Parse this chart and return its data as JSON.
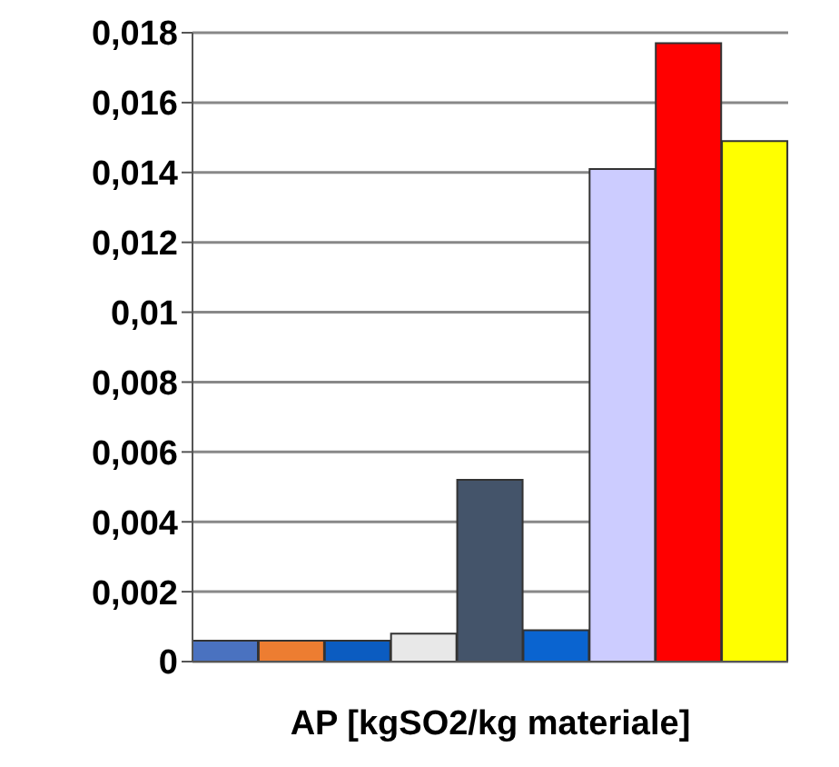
{
  "chart_data": {
    "type": "bar",
    "xlabel": "AP [kgSO2/kg materiale]",
    "categories": [
      null,
      null,
      null,
      null,
      null,
      null,
      null,
      null,
      null
    ],
    "values": [
      0.0006,
      0.0006,
      0.0006,
      0.0008,
      0.0052,
      0.0009,
      0.0141,
      0.0177,
      0.0149
    ],
    "colors": [
      "#4a72c0",
      "#ed7d31",
      "#0b5cc1",
      "#e8e8e8",
      "#44546a",
      "#0a64d0",
      "#ccccff",
      "#ff0000",
      "#ffff00"
    ],
    "ylim": [
      0,
      0.018
    ],
    "yticks": [
      {
        "value": 0,
        "label": "0"
      },
      {
        "value": 0.002,
        "label": "0,002"
      },
      {
        "value": 0.004,
        "label": "0,004"
      },
      {
        "value": 0.006,
        "label": "0,006"
      },
      {
        "value": 0.008,
        "label": "0,008"
      },
      {
        "value": 0.01,
        "label": "0,01"
      },
      {
        "value": 0.012,
        "label": "0,012"
      },
      {
        "value": 0.014,
        "label": "0,014"
      },
      {
        "value": 0.016,
        "label": "0,016"
      },
      {
        "value": 0.018,
        "label": "0,018"
      }
    ],
    "grid": "y",
    "tick_labels": "y"
  }
}
